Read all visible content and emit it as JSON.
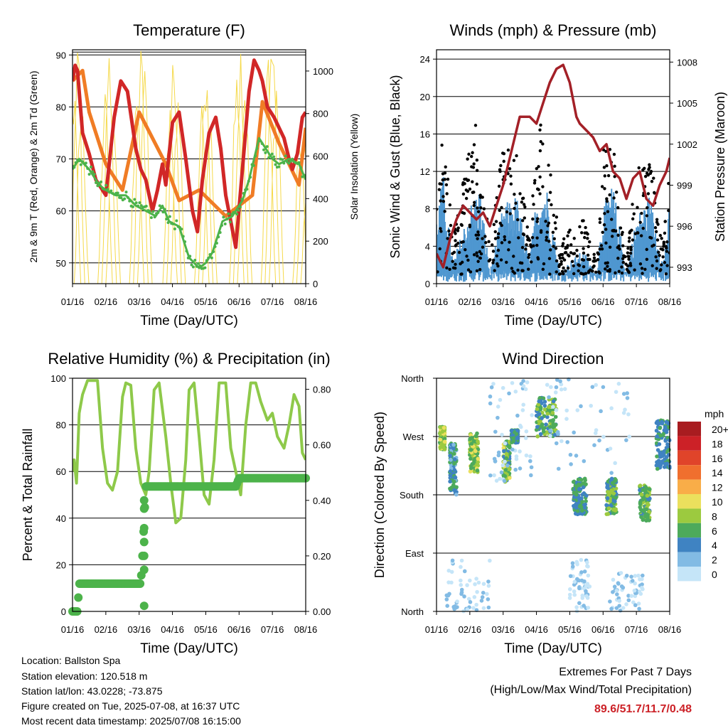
{
  "colors": {
    "temp_red": "#d12727",
    "temp_orange": "#f07c25",
    "dew_green": "#4cb34a",
    "solar_yellow": "#f5d94a",
    "wind_black": "#000000",
    "wind_blue": "#4f97d0",
    "pressure_maroon": "#a32027",
    "rh_green": "#8ec94a",
    "precip_green": "#4cb34a",
    "extremes_red": "#cc2127"
  },
  "info": {
    "location": "Location: Ballston Spa",
    "elevation": "Station elevation: 120.518 m",
    "latlon": "Station lat/lon: 43.0228; -73.875",
    "created": "Figure created on Tue, 2025-07-08, at 16:37 UTC",
    "recent": "Most recent data timestamp: 2025/07/08 16:15:00"
  },
  "extremes": {
    "line1": "Extremes For Past 7 Days",
    "line2": "(High/Low/Max Wind/Total Precipitation)",
    "values": "89.6/51.7/11.7/0.48"
  },
  "chart_data": [
    {
      "id": "temp",
      "type": "line",
      "title": "Temperature (F)",
      "xlabel": "Time (Day/UTC)",
      "ylabel": "2m & 9m T (Red, Orange) & 2m Td (Green)",
      "y2label": "Solar Insolation (Yellow)",
      "x_ticks": [
        "01/16",
        "02/16",
        "03/16",
        "04/16",
        "05/16",
        "06/16",
        "07/16",
        "08/16"
      ],
      "ylim": [
        46,
        91
      ],
      "y_ticks": [
        50,
        60,
        70,
        80,
        90
      ],
      "grid": [
        50,
        60,
        70,
        80,
        90
      ],
      "y2lim": [
        0,
        1100
      ],
      "y2_ticks": [
        0,
        200,
        400,
        600,
        800,
        1000
      ],
      "series": [
        {
          "color": "#f07c25",
          "width": 5,
          "x": [
            0,
            0.3,
            0.5,
            1,
            1.5,
            2,
            2.8,
            3.2,
            3.8,
            4.6,
            5.4,
            5.7,
            6.2,
            6.8,
            7
          ],
          "y": [
            85,
            87,
            79,
            69,
            64,
            79,
            69,
            62,
            64,
            59,
            63,
            81,
            73,
            65,
            76
          ]
        },
        {
          "color": "#d12727",
          "width": 5,
          "x": [
            0,
            0.08,
            0.15,
            0.3,
            0.5,
            0.7,
            1,
            1.25,
            1.45,
            1.65,
            1.9,
            2.05,
            2.2,
            2.4,
            2.55,
            2.7,
            2.8,
            3.0,
            3.2,
            3.4,
            3.6,
            3.75,
            3.9,
            4.1,
            4.3,
            4.45,
            4.6,
            4.75,
            4.9,
            5.1,
            5.3,
            5.45,
            5.6,
            5.7,
            5.85,
            6.05,
            6.2,
            6.35,
            6.5,
            6.6,
            6.75,
            6.9,
            7
          ],
          "y": [
            85,
            88,
            87,
            75,
            71,
            66,
            63,
            78,
            85,
            83,
            72,
            68,
            66,
            60,
            64,
            69,
            65,
            77,
            79,
            70,
            60,
            56,
            66,
            75,
            78,
            72,
            63,
            58,
            53,
            68,
            83,
            89,
            87,
            85,
            80,
            78,
            76,
            74,
            70,
            68,
            71,
            78,
            79
          ]
        },
        {
          "color": "#4cb34a",
          "width": 3,
          "x": [
            0,
            0.2,
            0.5,
            0.8,
            1,
            1.3,
            1.6,
            1.9,
            2.2,
            2.5,
            2.7,
            2.9,
            3.2,
            3.5,
            3.8,
            4.0,
            4.2,
            4.5,
            4.8,
            5.1,
            5.3,
            5.6,
            5.8,
            6.0,
            6.2,
            6.5,
            6.8,
            7
          ],
          "y": [
            68,
            70,
            68,
            65,
            64,
            63,
            63,
            61,
            60,
            59,
            61,
            58,
            57,
            51,
            49,
            50,
            52,
            58,
            59,
            62,
            66,
            74,
            72,
            70,
            69,
            70,
            69,
            66
          ]
        }
      ],
      "solar": {
        "color": "#f5d94a",
        "peaks": [
          0.15,
          1.1,
          2.05,
          3.05,
          4.0,
          5.05,
          6.0,
          6.95
        ],
        "peak_values": [
          1000,
          1000,
          1050,
          1000,
          950,
          1000,
          1050,
          750
        ]
      }
    },
    {
      "id": "wind",
      "type": "scatter",
      "title": "Winds (mph) & Pressure (mb)",
      "xlabel": "Time (Day/UTC)",
      "ylabel": "Sonic Wind & Gust (Blue, Black)",
      "y2label": "Station Pressure (Maroon)",
      "x_ticks": [
        "01/16",
        "02/16",
        "03/16",
        "04/16",
        "05/16",
        "06/16",
        "07/16",
        "08/16"
      ],
      "ylim": [
        0,
        25
      ],
      "y_ticks": [
        0,
        4,
        8,
        12,
        16,
        20,
        24
      ],
      "grid": [
        4,
        8,
        12,
        16,
        20,
        24
      ],
      "y2lim": [
        991.8,
        1008.9
      ],
      "y2_ticks": [
        993,
        996,
        999,
        1002,
        1005,
        1008
      ],
      "gust_envelope": {
        "x": [
          0,
          0.2,
          0.5,
          1.0,
          1.3,
          1.6,
          2.0,
          2.4,
          2.8,
          3.0,
          3.3,
          3.7,
          4.0,
          4.4,
          4.8,
          5.0,
          5.3,
          5.7,
          6.0,
          6.4,
          6.8,
          7.0
        ],
        "y": [
          15,
          16,
          4,
          16,
          16,
          3,
          14,
          14,
          4,
          16,
          16,
          3,
          5,
          6,
          2,
          14,
          14,
          1,
          12,
          14,
          3,
          14
        ]
      },
      "sustained_envelope": {
        "x": [
          0,
          0.2,
          0.5,
          1.0,
          1.3,
          1.6,
          2.0,
          2.4,
          2.8,
          3.0,
          3.3,
          3.7,
          4.0,
          4.4,
          4.8,
          5.0,
          5.3,
          5.7,
          6.0,
          6.4,
          6.8,
          7.0
        ],
        "y": [
          6,
          10,
          2,
          7,
          9,
          1,
          7,
          8,
          2,
          8,
          9,
          1,
          2,
          3,
          1,
          7,
          9,
          1,
          6,
          8,
          2,
          7
        ]
      },
      "pressure": {
        "x": [
          0,
          0.1,
          0.2,
          0.4,
          0.6,
          0.8,
          1.0,
          1.2,
          1.4,
          1.6,
          1.8,
          2.0,
          2.2,
          2.5,
          2.8,
          3.0,
          3.2,
          3.4,
          3.6,
          3.8,
          4.0,
          4.2,
          4.3,
          4.5,
          4.7,
          4.9,
          5.1,
          5.3,
          5.5,
          5.7,
          5.9,
          6.1,
          6.3,
          6.5,
          6.7,
          6.9,
          7.0
        ],
        "y": [
          994,
          993.5,
          993,
          995,
          996.5,
          997.5,
          997,
          996.5,
          997,
          996,
          997.5,
          999,
          1001,
          1004,
          1004,
          1003.5,
          1005,
          1006.5,
          1007.5,
          1007.8,
          1006.5,
          1004,
          1003.5,
          1003,
          1002.5,
          1001.5,
          1002,
          1000,
          999.5,
          998,
          999.5,
          1000,
          998,
          997.5,
          999,
          1000,
          1001
        ]
      }
    },
    {
      "id": "rh",
      "type": "line",
      "title": "Relative Humidity (%) & Precipitation (in)",
      "xlabel": "Time (Day/UTC)",
      "ylabel": "Percent & Total Rainfall",
      "x_ticks": [
        "01/16",
        "02/16",
        "03/16",
        "04/16",
        "05/16",
        "06/16",
        "07/16",
        "08/16"
      ],
      "ylim": [
        0,
        100
      ],
      "y_ticks": [
        0,
        20,
        40,
        60,
        80,
        100
      ],
      "grid": [
        20,
        40,
        60,
        80
      ],
      "y2lim": [
        0,
        0.84
      ],
      "y2_ticks": [
        "0.00",
        "0.20",
        "0.40",
        "0.60",
        "0.80"
      ],
      "rh": {
        "x": [
          0,
          0.05,
          0.12,
          0.2,
          0.3,
          0.45,
          0.6,
          0.75,
          0.9,
          1.05,
          1.2,
          1.35,
          1.5,
          1.6,
          1.75,
          1.9,
          2.05,
          2.2,
          2.3,
          2.45,
          2.6,
          2.8,
          2.95,
          3.1,
          3.25,
          3.4,
          3.5,
          3.65,
          3.8,
          3.95,
          4.1,
          4.25,
          4.4,
          4.6,
          4.75,
          4.9,
          5.05,
          5.2,
          5.35,
          5.5,
          5.65,
          5.85,
          6.0,
          6.15,
          6.35,
          6.5,
          6.65,
          6.8,
          6.9,
          7
        ],
        "y": [
          60,
          65,
          55,
          85,
          93,
          99,
          99,
          99,
          70,
          55,
          52,
          60,
          92,
          98,
          97,
          70,
          55,
          50,
          60,
          95,
          98,
          75,
          55,
          38,
          40,
          65,
          95,
          98,
          75,
          50,
          46,
          65,
          98,
          98,
          70,
          60,
          50,
          80,
          98,
          98,
          90,
          82,
          85,
          75,
          70,
          80,
          93,
          88,
          68,
          65
        ]
      },
      "precip": {
        "x": [
          0,
          0.15,
          0.2,
          2.05,
          2.1,
          2.2,
          2.3,
          4.9,
          5.0,
          5.4,
          7
        ],
        "y": [
          0,
          0,
          0.1,
          0.1,
          0.2,
          0.45,
          0.45,
          0.45,
          0.48,
          0.48,
          0.48
        ]
      }
    },
    {
      "id": "dir",
      "type": "scatter",
      "title": "Wind Direction",
      "xlabel": "Time (Day/UTC)",
      "ylabel": "Direction (Colored By Speed)",
      "x_ticks": [
        "01/16",
        "02/16",
        "03/16",
        "04/16",
        "05/16",
        "06/16",
        "07/16",
        "08/16"
      ],
      "y_ticks": [
        "North",
        "West",
        "South",
        "East",
        "North"
      ],
      "ylim": [
        0,
        360
      ],
      "legend": {
        "title": "mph",
        "labels": [
          "20+",
          "18",
          "16",
          "14",
          "12",
          "10",
          "8",
          "6",
          "4",
          "2",
          "0"
        ],
        "colors": [
          "#a81c20",
          "#cc2127",
          "#e0442a",
          "#f06f2e",
          "#f9ad48",
          "#ebe05d",
          "#9cca3f",
          "#4daa5b",
          "#3f83c2",
          "#82bbe4",
          "#c5e5f8"
        ]
      },
      "clusters": [
        {
          "x": [
            0.1,
            0.25
          ],
          "y": [
            250,
            285
          ],
          "speed": [
            6,
            10
          ]
        },
        {
          "x": [
            0.4,
            0.6
          ],
          "y": [
            180,
            260
          ],
          "speed": [
            2,
            6
          ]
        },
        {
          "x": [
            1.0,
            1.25
          ],
          "y": [
            215,
            275
          ],
          "speed": [
            5,
            11
          ]
        },
        {
          "x": [
            2.0,
            2.2
          ],
          "y": [
            200,
            265
          ],
          "speed": [
            4,
            10
          ]
        },
        {
          "x": [
            2.25,
            2.45
          ],
          "y": [
            260,
            280
          ],
          "speed": [
            3,
            7
          ]
        },
        {
          "x": [
            3.0,
            3.6
          ],
          "y": [
            270,
            330
          ],
          "speed": [
            4,
            9
          ]
        },
        {
          "x": [
            4.1,
            4.5
          ],
          "y": [
            150,
            205
          ],
          "speed": [
            3,
            7
          ]
        },
        {
          "x": [
            5.1,
            5.4
          ],
          "y": [
            150,
            205
          ],
          "speed": [
            3,
            9
          ]
        },
        {
          "x": [
            6.1,
            6.4
          ],
          "y": [
            140,
            195
          ],
          "speed": [
            4,
            9
          ]
        },
        {
          "x": [
            6.6,
            7.0
          ],
          "y": [
            220,
            295
          ],
          "speed": [
            3,
            6
          ]
        },
        {
          "x": [
            0.3,
            1.6
          ],
          "y": [
            0,
            80
          ],
          "speed": [
            0,
            2
          ]
        },
        {
          "x": [
            4.0,
            4.6
          ],
          "y": [
            0,
            80
          ],
          "speed": [
            0,
            2
          ]
        },
        {
          "x": [
            5.2,
            6.2
          ],
          "y": [
            0,
            60
          ],
          "speed": [
            0,
            2
          ]
        },
        {
          "x": [
            1.6,
            2.9
          ],
          "y": [
            200,
            360
          ],
          "speed": [
            0,
            2
          ]
        },
        {
          "x": [
            3.3,
            5.8
          ],
          "y": [
            210,
            360
          ],
          "speed": [
            0,
            2
          ]
        }
      ]
    }
  ]
}
